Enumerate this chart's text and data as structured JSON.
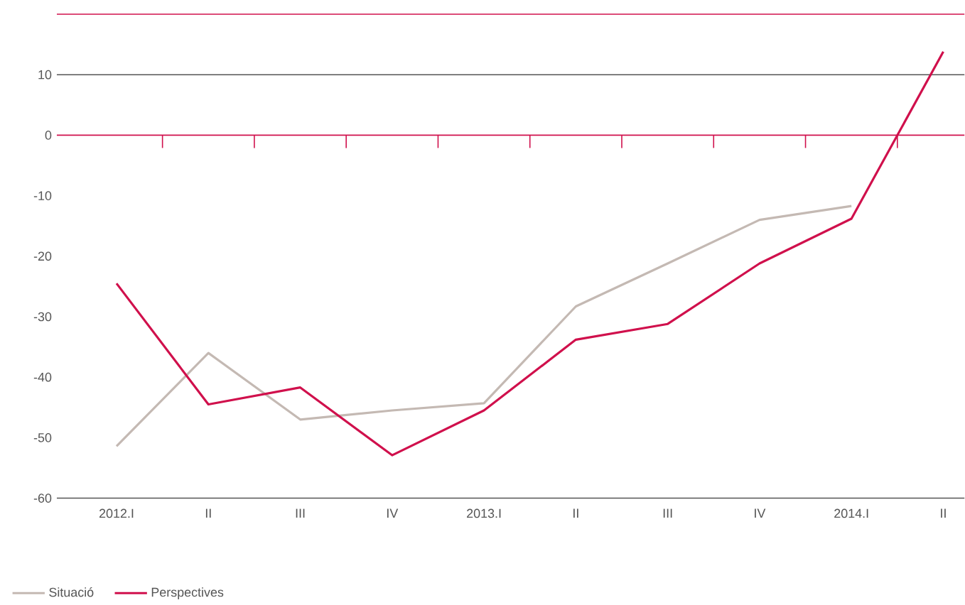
{
  "chart_data": {
    "type": "line",
    "categories": [
      "2012.I",
      "II",
      "III",
      "IV",
      "2013.I",
      "II",
      "III",
      "IV",
      "2014.I",
      "II"
    ],
    "series": [
      {
        "name": "Situació",
        "color": "#c4b9b3",
        "values": [
          -51.4,
          -36,
          -47,
          -45.5,
          -44.3,
          -28.3,
          -21.2,
          -14,
          -11.7,
          null
        ]
      },
      {
        "name": "Perspectives",
        "color": "#d0104c",
        "values": [
          -24.5,
          -44.5,
          -41.7,
          -52.9,
          -45.5,
          -33.8,
          -31.2,
          -21.2,
          -13.8,
          13.8
        ]
      }
    ],
    "ylim": [
      -60,
      20
    ],
    "yticks": [
      -60,
      -50,
      -40,
      -30,
      -20,
      -10,
      0,
      10
    ],
    "ref_lines": [
      {
        "axis": "y",
        "value": 10,
        "color": "#555555"
      },
      {
        "axis": "y",
        "value": 0,
        "color": "#d0104c"
      }
    ],
    "legend": "bottom left",
    "marker": "none",
    "line_style": "solid"
  }
}
